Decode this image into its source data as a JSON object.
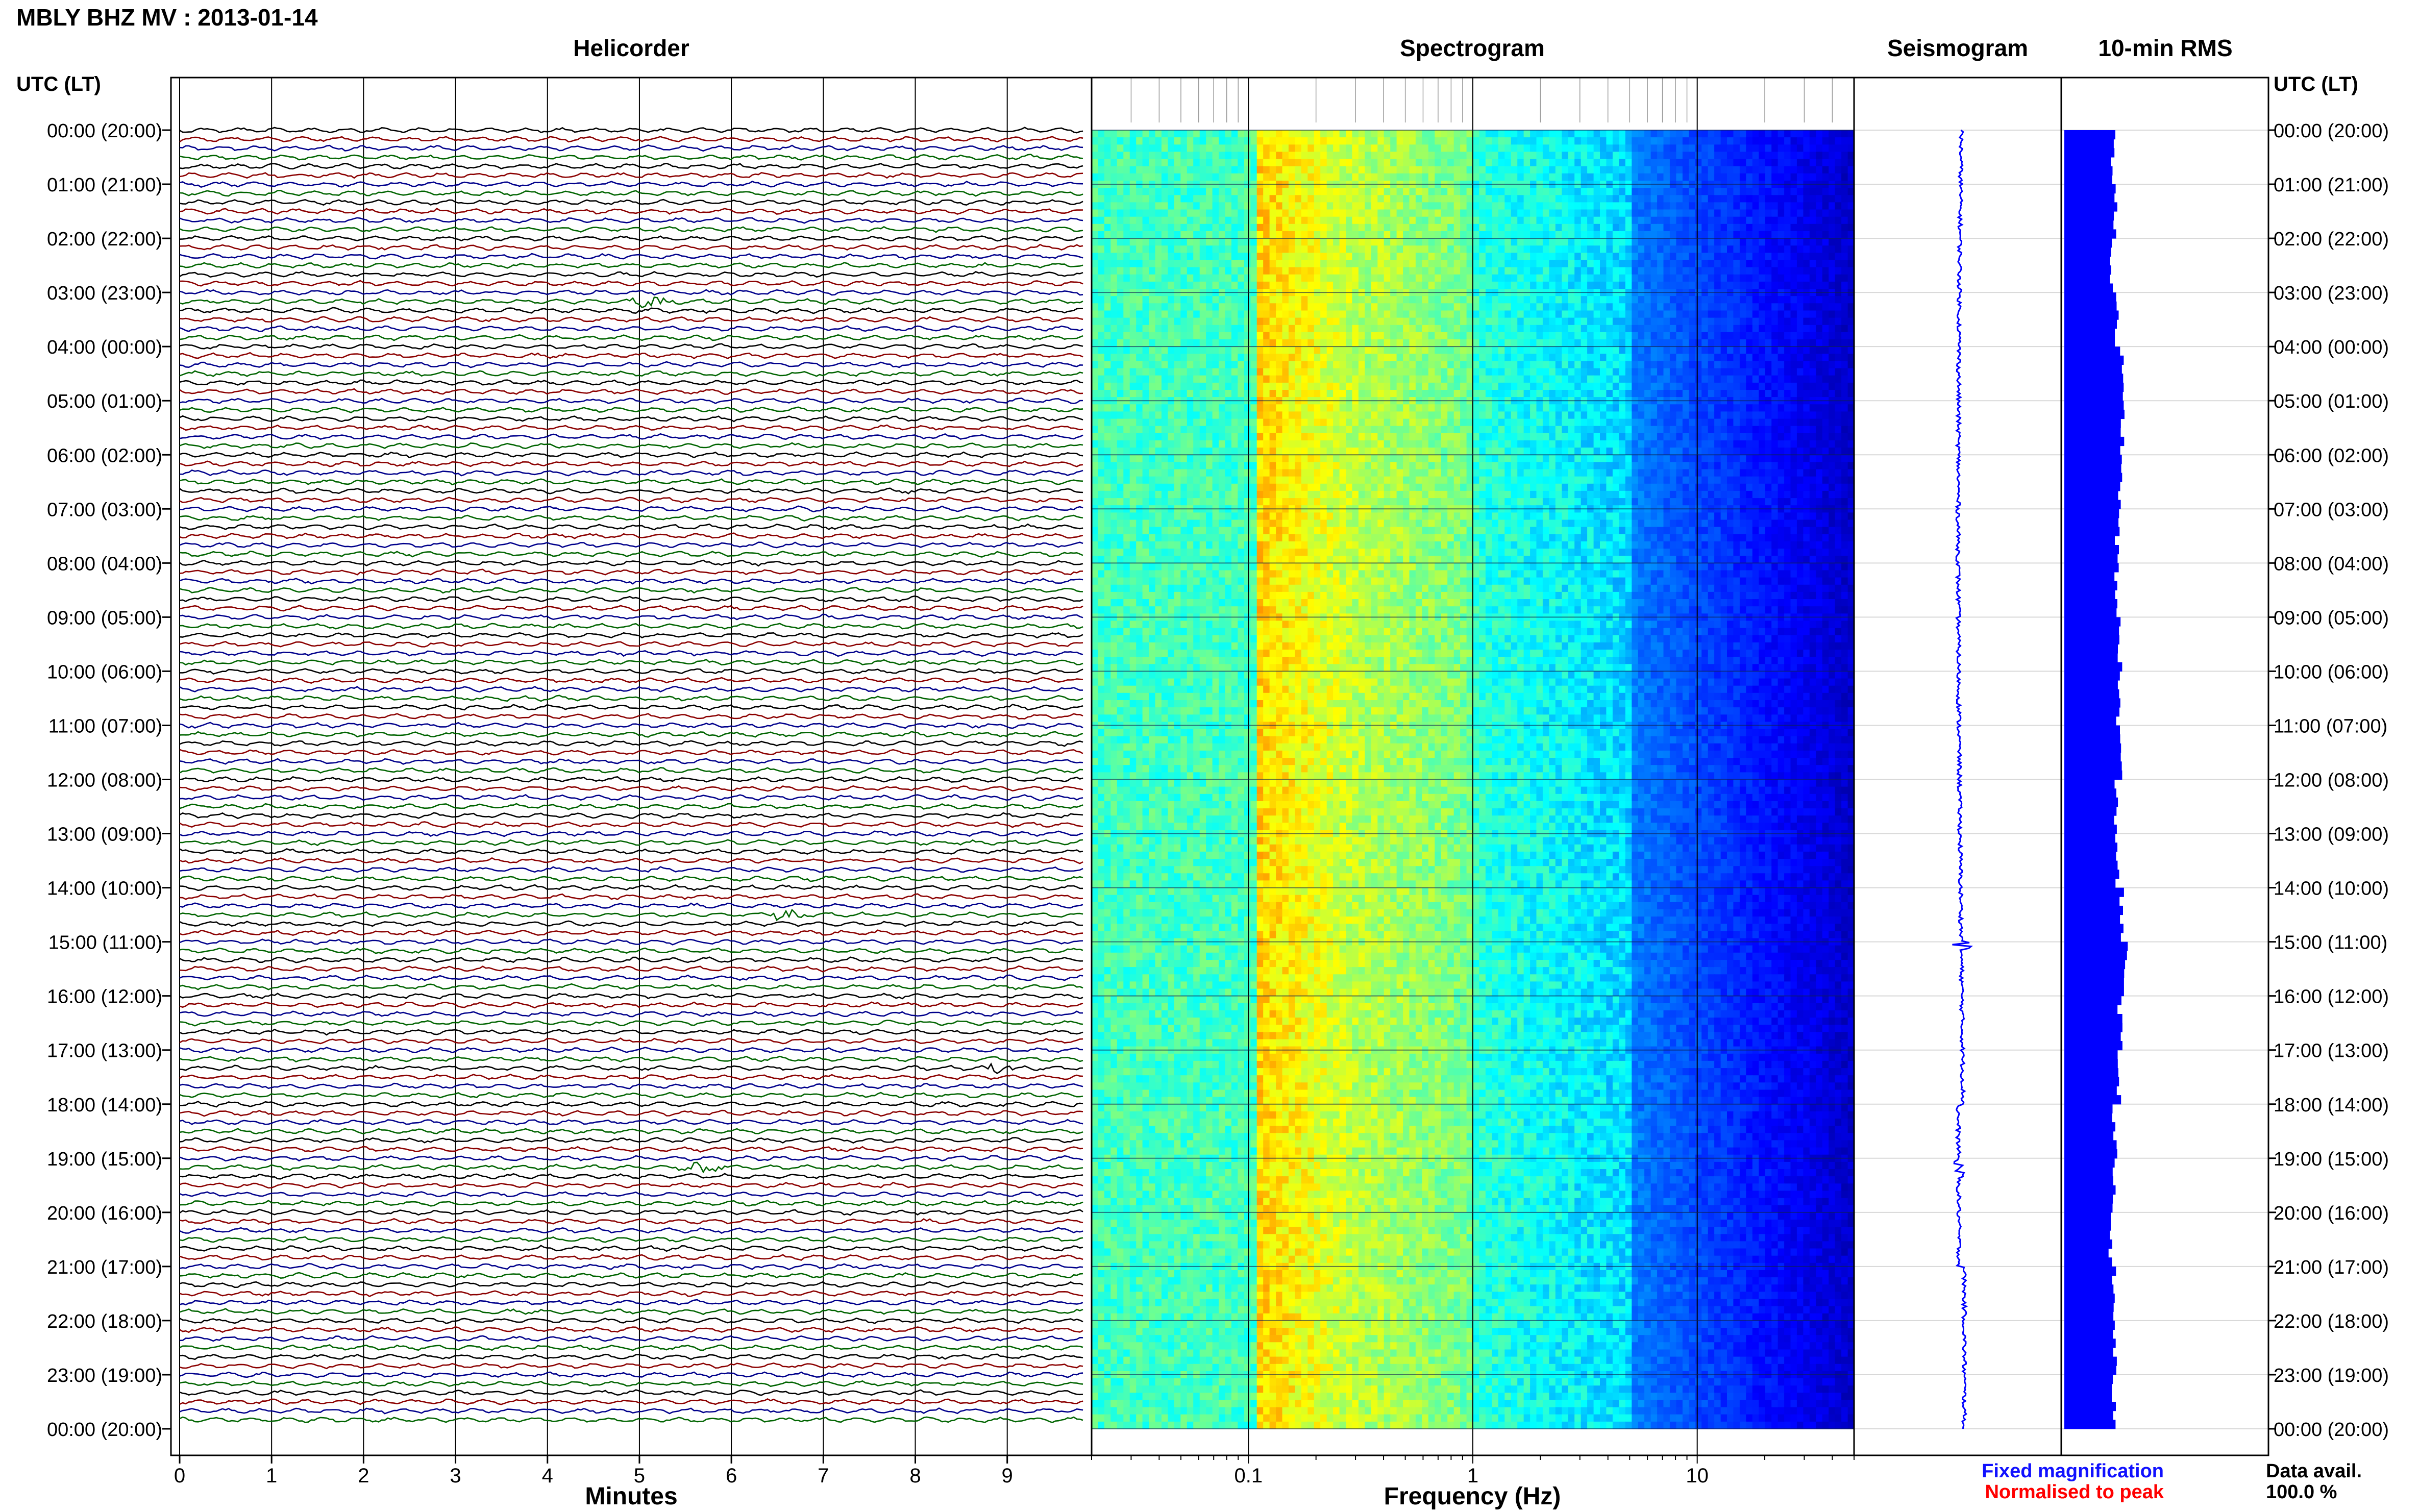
{
  "header": {
    "title": "MBLY BHZ MV : 2013-01-14",
    "panel_helicorder": "Helicorder",
    "panel_spectrogram": "Spectrogram",
    "panel_seismogram": "Seismogram",
    "panel_rms": "10-min RMS",
    "utc_lt_left": "UTC (LT)",
    "utc_lt_right": "UTC (LT)"
  },
  "time_labels": [
    "00:00 (20:00)",
    "01:00 (21:00)",
    "02:00 (22:00)",
    "03:00 (23:00)",
    "04:00 (00:00)",
    "05:00 (01:00)",
    "06:00 (02:00)",
    "07:00 (03:00)",
    "08:00 (04:00)",
    "09:00 (05:00)",
    "10:00 (06:00)",
    "11:00 (07:00)",
    "12:00 (08:00)",
    "13:00 (09:00)",
    "14:00 (10:00)",
    "15:00 (11:00)",
    "16:00 (12:00)",
    "17:00 (13:00)",
    "18:00 (14:00)",
    "19:00 (15:00)",
    "20:00 (16:00)",
    "21:00 (17:00)",
    "22:00 (18:00)",
    "23:00 (19:00)",
    "00:00 (20:00)"
  ],
  "footer": {
    "xlabel_helicorder": "Minutes",
    "xlabel_spectrogram": "Frequency (Hz)",
    "legend_fixed": "Fixed magnification",
    "legend_normalised": "Normalised to peak",
    "data_avail_label": "Data avail.",
    "data_avail_value": "100.0 %"
  },
  "colors": {
    "trace_cycle": [
      "#000000",
      "#8b0000",
      "#00008b",
      "#006400"
    ],
    "legend_fixed": "#1010ff",
    "legend_normalised": "#ff0000",
    "rms_bar": "#0000ff",
    "seismogram": "#0000ff"
  },
  "chart_data": [
    {
      "type": "line",
      "panel": "Helicorder",
      "xlabel": "Minutes",
      "x_ticks": [
        0,
        1,
        2,
        3,
        4,
        5,
        6,
        7,
        8,
        9
      ],
      "xlim": [
        0,
        10
      ],
      "rows_per_hour": 6,
      "hours": 24,
      "events_minutes_hours": [
        {
          "hour": 3.2,
          "minute": 5.1
        },
        {
          "hour": 14.5,
          "minute": 6.6
        },
        {
          "hour": 17.3,
          "minute": 8.9
        },
        {
          "hour": 19.1,
          "minute": 5.7
        }
      ]
    },
    {
      "type": "heatmap",
      "panel": "Spectrogram",
      "xlabel": "Frequency (Hz)",
      "x_scale": "log",
      "x_ticks": [
        0.1,
        1,
        10
      ],
      "x_tick_labels": [
        "0.1",
        "1",
        "10"
      ],
      "xlim": [
        0.02,
        50
      ],
      "colormap": "jet",
      "peak_band_hz": [
        0.11,
        0.35
      ]
    },
    {
      "type": "line",
      "panel": "Seismogram",
      "hours": 24,
      "x_axis": "none"
    },
    {
      "type": "bar",
      "panel": "10-min RMS",
      "orientation": "horizontal",
      "bin_minutes": 10,
      "hourly_rms_relative": [
        0.74,
        0.76,
        0.72,
        0.8,
        0.86,
        0.88,
        0.84,
        0.8,
        0.78,
        0.84,
        0.82,
        0.84,
        0.78,
        0.8,
        0.86,
        0.92,
        0.84,
        0.82,
        0.76,
        0.74,
        0.7,
        0.74,
        0.76,
        0.74
      ]
    }
  ]
}
